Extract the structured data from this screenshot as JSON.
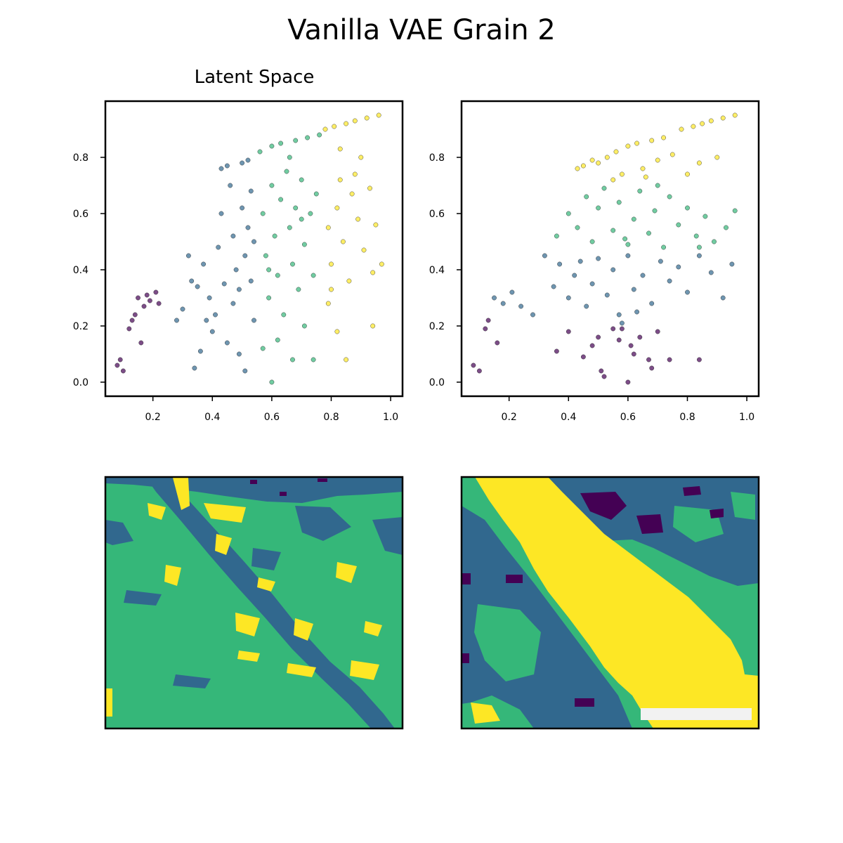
{
  "figure": {
    "title": "Vanilla VAE Grain 2"
  },
  "chart_data": [
    {
      "type": "scatter",
      "title": "Latent Space",
      "panel": "top-left",
      "xlim": [
        0.04,
        1.04
      ],
      "ylim": [
        -0.05,
        1.0
      ],
      "xticks": [
        0.2,
        0.4,
        0.6,
        0.8,
        1.0
      ],
      "yticks": [
        0.0,
        0.2,
        0.4,
        0.6,
        0.8
      ],
      "xtick_labels": [
        "0.2",
        "0.4",
        "0.6",
        "0.8",
        "1.0"
      ],
      "ytick_labels": [
        "0.0",
        "0.2",
        "0.4",
        "0.6",
        "0.8"
      ],
      "grid": false,
      "coloring": "clusters split by x (approx. boundaries 0.2, 0.55, 0.77)",
      "series": [
        {
          "color": "#440154",
          "points": [
            [
              0.08,
              0.06
            ],
            [
              0.1,
              0.04
            ],
            [
              0.12,
              0.19
            ],
            [
              0.13,
              0.22
            ],
            [
              0.15,
              0.3
            ],
            [
              0.16,
              0.14
            ],
            [
              0.17,
              0.27
            ],
            [
              0.19,
              0.29
            ],
            [
              0.21,
              0.32
            ],
            [
              0.22,
              0.28
            ],
            [
              0.18,
              0.31
            ],
            [
              0.14,
              0.24
            ],
            [
              0.09,
              0.08
            ]
          ]
        },
        {
          "color": "#31688e",
          "points": [
            [
              0.3,
              0.26
            ],
            [
              0.33,
              0.36
            ],
            [
              0.36,
              0.11
            ],
            [
              0.37,
              0.42
            ],
            [
              0.39,
              0.3
            ],
            [
              0.4,
              0.18
            ],
            [
              0.42,
              0.48
            ],
            [
              0.43,
              0.6
            ],
            [
              0.43,
              0.76
            ],
            [
              0.45,
              0.77
            ],
            [
              0.46,
              0.7
            ],
            [
              0.47,
              0.52
            ],
            [
              0.48,
              0.4
            ],
            [
              0.49,
              0.33
            ],
            [
              0.5,
              0.62
            ],
            [
              0.5,
              0.78
            ],
            [
              0.51,
              0.45
            ],
            [
              0.51,
              0.04
            ],
            [
              0.52,
              0.55
            ],
            [
              0.52,
              0.79
            ],
            [
              0.53,
              0.68
            ],
            [
              0.53,
              0.36
            ],
            [
              0.54,
              0.22
            ],
            [
              0.54,
              0.5
            ],
            [
              0.44,
              0.35
            ],
            [
              0.41,
              0.24
            ],
            [
              0.47,
              0.28
            ],
            [
              0.45,
              0.14
            ],
            [
              0.38,
              0.22
            ],
            [
              0.35,
              0.34
            ],
            [
              0.32,
              0.45
            ],
            [
              0.49,
              0.1
            ],
            [
              0.28,
              0.22
            ],
            [
              0.34,
              0.05
            ]
          ]
        },
        {
          "color": "#35b779",
          "points": [
            [
              0.56,
              0.82
            ],
            [
              0.57,
              0.6
            ],
            [
              0.58,
              0.45
            ],
            [
              0.59,
              0.3
            ],
            [
              0.6,
              0.7
            ],
            [
              0.6,
              0.84
            ],
            [
              0.61,
              0.52
            ],
            [
              0.62,
              0.38
            ],
            [
              0.63,
              0.65
            ],
            [
              0.63,
              0.85
            ],
            [
              0.64,
              0.24
            ],
            [
              0.65,
              0.75
            ],
            [
              0.66,
              0.55
            ],
            [
              0.67,
              0.42
            ],
            [
              0.68,
              0.62
            ],
            [
              0.68,
              0.86
            ],
            [
              0.69,
              0.33
            ],
            [
              0.7,
              0.72
            ],
            [
              0.71,
              0.49
            ],
            [
              0.72,
              0.87
            ],
            [
              0.73,
              0.6
            ],
            [
              0.74,
              0.38
            ],
            [
              0.75,
              0.67
            ],
            [
              0.76,
              0.88
            ],
            [
              0.6,
              0.0
            ],
            [
              0.62,
              0.15
            ],
            [
              0.67,
              0.08
            ],
            [
              0.71,
              0.2
            ],
            [
              0.57,
              0.12
            ],
            [
              0.74,
              0.08
            ],
            [
              0.59,
              0.4
            ],
            [
              0.66,
              0.8
            ],
            [
              0.7,
              0.58
            ]
          ]
        },
        {
          "color": "#fde725",
          "points": [
            [
              0.78,
              0.9
            ],
            [
              0.79,
              0.55
            ],
            [
              0.8,
              0.42
            ],
            [
              0.81,
              0.91
            ],
            [
              0.82,
              0.62
            ],
            [
              0.83,
              0.72
            ],
            [
              0.84,
              0.5
            ],
            [
              0.85,
              0.92
            ],
            [
              0.86,
              0.36
            ],
            [
              0.87,
              0.67
            ],
            [
              0.88,
              0.93
            ],
            [
              0.89,
              0.58
            ],
            [
              0.9,
              0.8
            ],
            [
              0.91,
              0.47
            ],
            [
              0.92,
              0.94
            ],
            [
              0.93,
              0.69
            ],
            [
              0.94,
              0.39
            ],
            [
              0.95,
              0.56
            ],
            [
              0.96,
              0.95
            ],
            [
              0.97,
              0.42
            ],
            [
              0.85,
              0.08
            ],
            [
              0.94,
              0.2
            ],
            [
              0.79,
              0.28
            ],
            [
              0.82,
              0.18
            ],
            [
              0.8,
              0.33
            ],
            [
              0.88,
              0.74
            ],
            [
              0.83,
              0.83
            ]
          ]
        }
      ]
    },
    {
      "type": "scatter",
      "title": "",
      "panel": "top-right",
      "xlim": [
        0.04,
        1.04
      ],
      "ylim": [
        -0.05,
        1.0
      ],
      "xticks": [
        0.2,
        0.4,
        0.6,
        0.8,
        1.0
      ],
      "yticks": [
        0.0,
        0.2,
        0.4,
        0.6,
        0.8
      ],
      "xtick_labels": [
        "0.2",
        "0.4",
        "0.6",
        "0.8",
        "1.0"
      ],
      "ytick_labels": [
        "0.0",
        "0.2",
        "0.4",
        "0.6",
        "0.8"
      ],
      "grid": false,
      "coloring": "clusters split by y (approx. boundaries 0.2, 0.47, 0.71)",
      "series": [
        {
          "color": "#440154",
          "points": [
            [
              0.08,
              0.06
            ],
            [
              0.1,
              0.04
            ],
            [
              0.12,
              0.19
            ],
            [
              0.13,
              0.22
            ],
            [
              0.16,
              0.14
            ],
            [
              0.36,
              0.11
            ],
            [
              0.4,
              0.18
            ],
            [
              0.45,
              0.09
            ],
            [
              0.48,
              0.13
            ],
            [
              0.51,
              0.04
            ],
            [
              0.52,
              0.02
            ],
            [
              0.55,
              0.19
            ],
            [
              0.57,
              0.15
            ],
            [
              0.6,
              0.0
            ],
            [
              0.62,
              0.1
            ],
            [
              0.64,
              0.16
            ],
            [
              0.67,
              0.08
            ],
            [
              0.7,
              0.18
            ],
            [
              0.74,
              0.08
            ],
            [
              0.84,
              0.08
            ],
            [
              0.58,
              0.19
            ],
            [
              0.5,
              0.16
            ],
            [
              0.61,
              0.13
            ],
            [
              0.68,
              0.05
            ]
          ]
        },
        {
          "color": "#31688e",
          "points": [
            [
              0.15,
              0.3
            ],
            [
              0.18,
              0.28
            ],
            [
              0.21,
              0.32
            ],
            [
              0.24,
              0.27
            ],
            [
              0.28,
              0.24
            ],
            [
              0.32,
              0.45
            ],
            [
              0.35,
              0.34
            ],
            [
              0.37,
              0.42
            ],
            [
              0.4,
              0.3
            ],
            [
              0.42,
              0.38
            ],
            [
              0.44,
              0.43
            ],
            [
              0.46,
              0.27
            ],
            [
              0.48,
              0.35
            ],
            [
              0.5,
              0.44
            ],
            [
              0.53,
              0.31
            ],
            [
              0.55,
              0.4
            ],
            [
              0.57,
              0.24
            ],
            [
              0.6,
              0.45
            ],
            [
              0.62,
              0.33
            ],
            [
              0.65,
              0.38
            ],
            [
              0.68,
              0.28
            ],
            [
              0.71,
              0.43
            ],
            [
              0.74,
              0.36
            ],
            [
              0.77,
              0.41
            ],
            [
              0.8,
              0.32
            ],
            [
              0.84,
              0.45
            ],
            [
              0.88,
              0.39
            ],
            [
              0.92,
              0.3
            ],
            [
              0.95,
              0.42
            ],
            [
              0.58,
              0.21
            ],
            [
              0.63,
              0.25
            ]
          ]
        },
        {
          "color": "#35b779",
          "points": [
            [
              0.36,
              0.52
            ],
            [
              0.4,
              0.6
            ],
            [
              0.43,
              0.55
            ],
            [
              0.46,
              0.66
            ],
            [
              0.48,
              0.5
            ],
            [
              0.5,
              0.62
            ],
            [
              0.52,
              0.69
            ],
            [
              0.55,
              0.54
            ],
            [
              0.57,
              0.64
            ],
            [
              0.6,
              0.49
            ],
            [
              0.62,
              0.58
            ],
            [
              0.64,
              0.68
            ],
            [
              0.67,
              0.53
            ],
            [
              0.69,
              0.61
            ],
            [
              0.72,
              0.48
            ],
            [
              0.74,
              0.66
            ],
            [
              0.77,
              0.56
            ],
            [
              0.8,
              0.62
            ],
            [
              0.83,
              0.52
            ],
            [
              0.86,
              0.59
            ],
            [
              0.89,
              0.5
            ],
            [
              0.93,
              0.55
            ],
            [
              0.96,
              0.61
            ],
            [
              0.7,
              0.7
            ],
            [
              0.59,
              0.51
            ],
            [
              0.84,
              0.48
            ]
          ]
        },
        {
          "color": "#fde725",
          "points": [
            [
              0.43,
              0.76
            ],
            [
              0.45,
              0.77
            ],
            [
              0.48,
              0.79
            ],
            [
              0.5,
              0.78
            ],
            [
              0.53,
              0.8
            ],
            [
              0.56,
              0.82
            ],
            [
              0.58,
              0.74
            ],
            [
              0.6,
              0.84
            ],
            [
              0.63,
              0.85
            ],
            [
              0.65,
              0.76
            ],
            [
              0.68,
              0.86
            ],
            [
              0.7,
              0.79
            ],
            [
              0.72,
              0.87
            ],
            [
              0.75,
              0.81
            ],
            [
              0.78,
              0.9
            ],
            [
              0.8,
              0.74
            ],
            [
              0.82,
              0.91
            ],
            [
              0.85,
              0.92
            ],
            [
              0.88,
              0.93
            ],
            [
              0.9,
              0.8
            ],
            [
              0.92,
              0.94
            ],
            [
              0.96,
              0.95
            ],
            [
              0.55,
              0.72
            ],
            [
              0.66,
              0.73
            ],
            [
              0.84,
              0.78
            ]
          ]
        }
      ]
    },
    {
      "type": "heatmap",
      "panel": "bottom-left",
      "colormap": [
        "#440154",
        "#31688e",
        "#35b779",
        "#fde725"
      ],
      "structure": "green field with a diagonal dark-blue band from upper-left to lower-right and scattered yellow and blue patches"
    },
    {
      "type": "heatmap",
      "panel": "bottom-right",
      "colormap": [
        "#440154",
        "#31688e",
        "#35b779",
        "#fde725"
      ],
      "structure": "green field with a wide yellow diagonal band from upper-left to lower-right, blue regions and a few dark purple patches, light gray bar at the bottom right"
    }
  ]
}
